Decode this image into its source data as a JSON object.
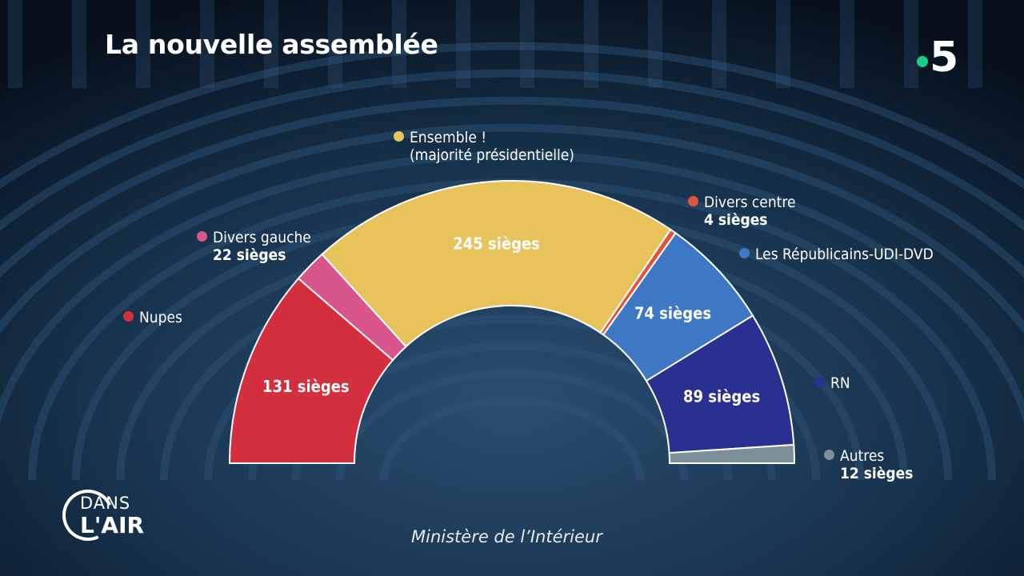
{
  "title": "La nouvelle assemblée",
  "channel_logo": {
    "digit": "5",
    "dot_color": "#1ccb84"
  },
  "show_logo": {
    "line1": "DANS",
    "line2": "L'AIR"
  },
  "source": "Ministère de l’Intérieur",
  "chart_data": {
    "type": "pie",
    "variant": "parliament-semicircle",
    "title": "La nouvelle assemblée",
    "unit": "sièges",
    "total": 577,
    "series": [
      {
        "name": "Nupes",
        "value": 131,
        "color": "#d42f3e",
        "value_label": "131 sièges",
        "legend_seats": ""
      },
      {
        "name": "Divers gauche",
        "value": 22,
        "color": "#d9558e",
        "value_label": "",
        "legend_seats": "22 sièges"
      },
      {
        "name": "Ensemble !",
        "subname": "(majorité présidentielle)",
        "value": 245,
        "color": "#e8c25a",
        "value_label": "245 sièges",
        "legend_seats": ""
      },
      {
        "name": "Divers centre",
        "value": 4,
        "color": "#e0543c",
        "value_label": "",
        "legend_seats": "4 sièges"
      },
      {
        "name": "Les Républicains-UDI-DVD",
        "value": 74,
        "color": "#3e78c4",
        "value_label": "74 sièges",
        "legend_seats": ""
      },
      {
        "name": "RN",
        "value": 89,
        "color": "#29308f",
        "value_label": "89 sièges",
        "legend_seats": ""
      },
      {
        "name": "Autres",
        "value": 12,
        "color": "#7d8f99",
        "value_label": "",
        "legend_seats": "12 sièges"
      }
    ]
  }
}
